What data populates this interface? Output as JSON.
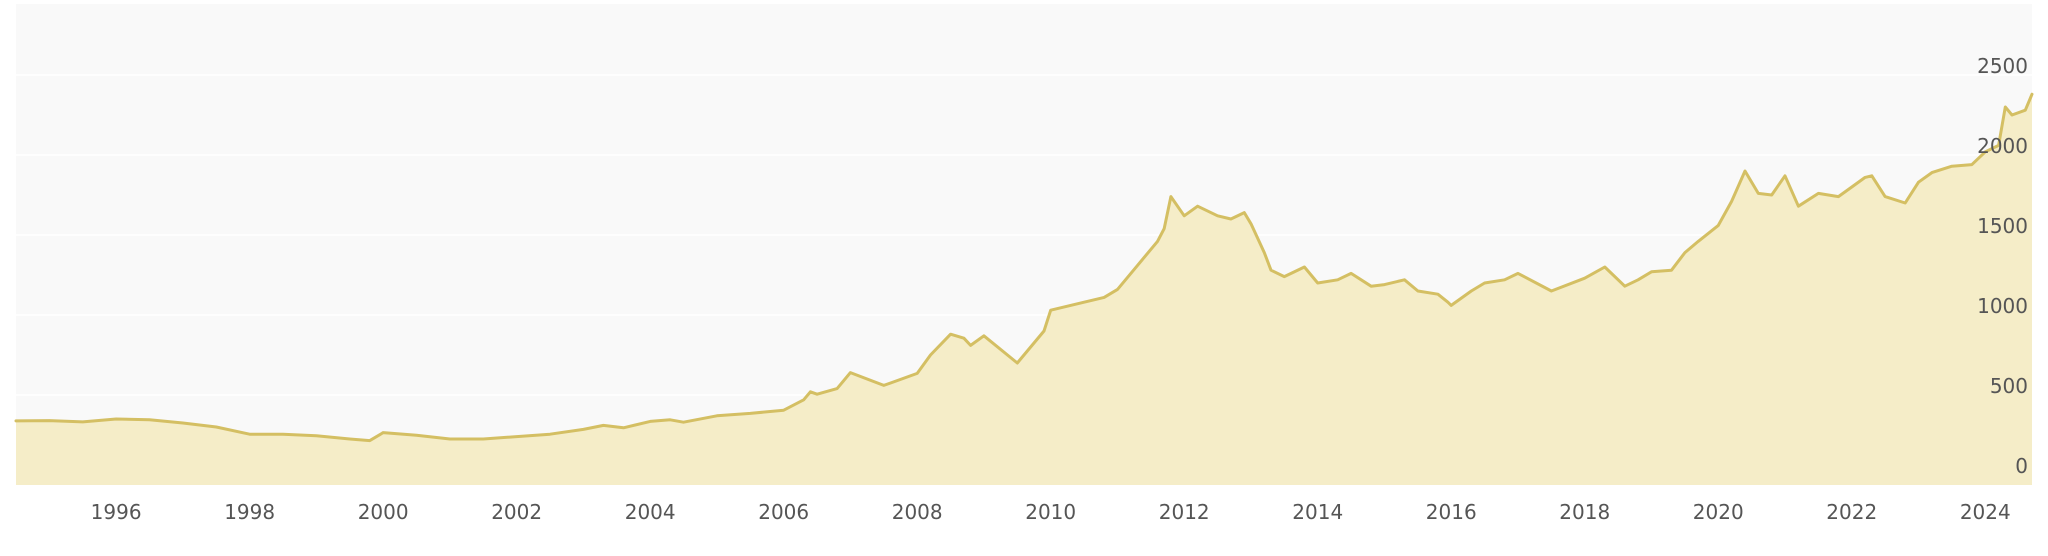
{
  "chart_data": {
    "type": "area",
    "title": "",
    "xlabel": "",
    "ylabel": "",
    "xlim": [
      1994.5,
      2024.7
    ],
    "ylim": [
      0,
      2500
    ],
    "y_axis_position": "right",
    "grid": "horizontal",
    "legend": "none",
    "colors": {
      "line": "#d4bf63",
      "fill": "#f5edc8",
      "plot_background": "#f9f9f9",
      "gridline": "#ffffff",
      "tick_text": "#555555"
    },
    "x_ticks": [
      {
        "value": 1996,
        "label": "1996"
      },
      {
        "value": 1998,
        "label": "1998"
      },
      {
        "value": 2000,
        "label": "2000"
      },
      {
        "value": 2002,
        "label": "2002"
      },
      {
        "value": 2004,
        "label": "2004"
      },
      {
        "value": 2006,
        "label": "2006"
      },
      {
        "value": 2008,
        "label": "2008"
      },
      {
        "value": 2010,
        "label": "2010"
      },
      {
        "value": 2012,
        "label": "2012"
      },
      {
        "value": 2014,
        "label": "2014"
      },
      {
        "value": 2016,
        "label": "2016"
      },
      {
        "value": 2018,
        "label": "2018"
      },
      {
        "value": 2020,
        "label": "2020"
      },
      {
        "value": 2022,
        "label": "2022"
      },
      {
        "value": 2024,
        "label": "2024"
      }
    ],
    "y_ticks": [
      {
        "value": 0,
        "label": "0"
      },
      {
        "value": 500,
        "label": "500"
      },
      {
        "value": 1000,
        "label": "1000"
      },
      {
        "value": 1500,
        "label": "1500"
      },
      {
        "value": 2000,
        "label": "2000"
      },
      {
        "value": 2500,
        "label": "2500"
      }
    ],
    "series": [
      {
        "x": [
          1994.5,
          1995.0,
          1995.5,
          1996.0,
          1996.5,
          1997.0,
          1997.5,
          1998.0,
          1998.5,
          1999.0,
          1999.5,
          1999.8,
          2000.0,
          2000.5,
          2001.0,
          2001.5,
          2002.0,
          2002.5,
          2003.0,
          2003.3,
          2003.6,
          2004.0,
          2004.3,
          2004.5,
          2005.0,
          2005.5,
          2006.0,
          2006.3,
          2006.4,
          2006.5,
          2006.8,
          2007.0,
          2007.5,
          2008.0,
          2008.2,
          2008.5,
          2008.7,
          2008.8,
          2009.0,
          2009.5,
          2009.9,
          2010.0,
          2010.5,
          2010.8,
          2011.0,
          2011.3,
          2011.6,
          2011.7,
          2011.8,
          2012.0,
          2012.2,
          2012.5,
          2012.7,
          2012.9,
          2013.0,
          2013.2,
          2013.3,
          2013.5,
          2013.8,
          2014.0,
          2014.3,
          2014.5,
          2014.8,
          2015.0,
          2015.3,
          2015.5,
          2015.8,
          2015.95,
          2016.0,
          2016.3,
          2016.5,
          2016.8,
          2017.0,
          2017.5,
          2018.0,
          2018.3,
          2018.6,
          2018.8,
          2019.0,
          2019.3,
          2019.5,
          2019.7,
          2020.0,
          2020.2,
          2020.4,
          2020.6,
          2020.8,
          2021.0,
          2021.2,
          2021.5,
          2021.8,
          2022.0,
          2022.2,
          2022.3,
          2022.5,
          2022.8,
          2023.0,
          2023.2,
          2023.5,
          2023.8,
          2024.0,
          2024.2,
          2024.3,
          2024.4,
          2024.6,
          2024.7
        ],
        "values": [
          338,
          340,
          332,
          350,
          345,
          325,
          300,
          255,
          255,
          245,
          225,
          215,
          265,
          248,
          225,
          225,
          240,
          255,
          285,
          310,
          295,
          335,
          345,
          330,
          370,
          385,
          405,
          470,
          520,
          505,
          540,
          640,
          560,
          635,
          750,
          880,
          855,
          810,
          870,
          700,
          900,
          1030,
          1080,
          1110,
          1160,
          1310,
          1460,
          1540,
          1740,
          1620,
          1680,
          1620,
          1600,
          1640,
          1570,
          1390,
          1280,
          1240,
          1300,
          1200,
          1220,
          1260,
          1180,
          1190,
          1220,
          1150,
          1130,
          1080,
          1060,
          1150,
          1200,
          1220,
          1260,
          1150,
          1230,
          1300,
          1180,
          1220,
          1270,
          1280,
          1390,
          1460,
          1560,
          1710,
          1900,
          1760,
          1750,
          1870,
          1680,
          1760,
          1740,
          1800,
          1860,
          1870,
          1740,
          1700,
          1830,
          1890,
          1930,
          1940,
          2020,
          2060,
          2300,
          2250,
          2280,
          2380
        ]
      }
    ]
  }
}
